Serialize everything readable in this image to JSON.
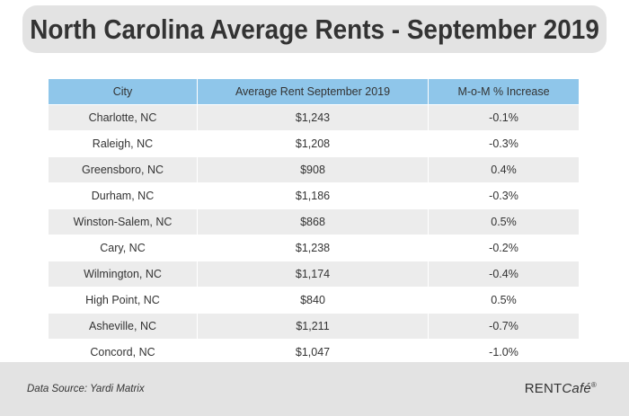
{
  "title": "North Carolina Average Rents - September 2019",
  "chart_data": {
    "type": "table",
    "columns": [
      "City",
      "Average Rent September 2019",
      "M-o-M % Increase"
    ],
    "rows": [
      {
        "city": "Charlotte, NC",
        "rent": "$1,243",
        "change": "-0.1%"
      },
      {
        "city": "Raleigh, NC",
        "rent": "$1,208",
        "change": "-0.3%"
      },
      {
        "city": "Greensboro, NC",
        "rent": "$908",
        "change": "0.4%"
      },
      {
        "city": "Durham, NC",
        "rent": "$1,186",
        "change": "-0.3%"
      },
      {
        "city": "Winston-Salem, NC",
        "rent": "$868",
        "change": "0.5%"
      },
      {
        "city": "Cary, NC",
        "rent": "$1,238",
        "change": "-0.2%"
      },
      {
        "city": "Wilmington, NC",
        "rent": "$1,174",
        "change": "-0.4%"
      },
      {
        "city": "High Point, NC",
        "rent": "$840",
        "change": "0.5%"
      },
      {
        "city": "Asheville, NC",
        "rent": "$1,211",
        "change": "-0.7%"
      },
      {
        "city": "Concord, NC",
        "rent": "$1,047",
        "change": "-1.0%"
      }
    ]
  },
  "footer": {
    "source": "Data Source: Yardi Matrix",
    "brand_plain": "RENT",
    "brand_italic": "Café",
    "brand_mark": "®"
  },
  "colors": {
    "header_bg": "#8fc6ea",
    "stripe_bg": "#ececec",
    "title_bg": "#e3e3e3",
    "text": "#333333"
  }
}
